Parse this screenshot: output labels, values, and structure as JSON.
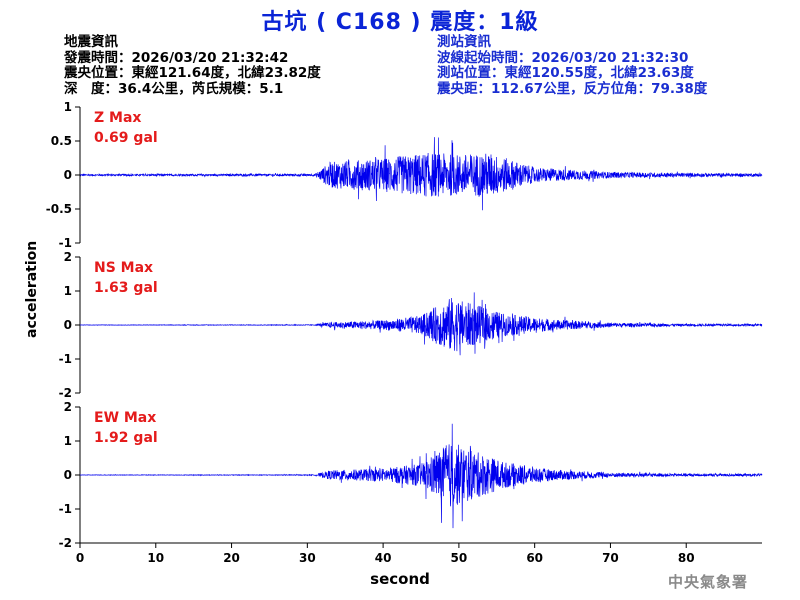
{
  "title": "古坑 ( C168 ) 震度：1級",
  "quake_info": {
    "heading": "地震資訊",
    "time": "發震時間：2026/03/20 21:32:42",
    "epicenter": "震央位置：東經121.64度，北緯23.82度",
    "depth_mag": "深　度：36.4公里，芮氏規模：5.1"
  },
  "station_info": {
    "heading": "測站資訊",
    "wave_start": "波線起始時間：2026/03/20 21:32:30",
    "location": "測站位置：東經120.55度，北緯23.63度",
    "distance": "震央距：112.67公里，反方位角：79.38度"
  },
  "ylabel": "acceleration",
  "xlabel": "second",
  "credit": "中央氣象署",
  "colors": {
    "trace": "#0000ee",
    "max_label": "#e41b1b",
    "title": "#0a24d6"
  },
  "chart_data": [
    {
      "type": "line",
      "component": "Z",
      "max_label": "Z Max",
      "max_value": "0.69 gal",
      "ylim": [
        -1,
        1
      ],
      "yticks": [
        1,
        0.5,
        0,
        -0.5,
        -1
      ],
      "envelope": {
        "x": [
          0,
          31,
          33,
          40,
          46,
          50,
          54,
          60,
          70,
          80,
          90
        ],
        "amp": [
          0.02,
          0.03,
          0.35,
          0.45,
          0.6,
          0.55,
          0.6,
          0.2,
          0.08,
          0.05,
          0.04
        ]
      }
    },
    {
      "type": "line",
      "component": "NS",
      "max_label": "NS Max",
      "max_value": "1.63 gal",
      "ylim": [
        -2,
        2
      ],
      "yticks": [
        2,
        1,
        0,
        -1,
        -2
      ],
      "envelope": {
        "x": [
          0,
          31,
          33,
          40,
          45,
          49,
          52,
          56,
          62,
          70,
          80,
          90
        ],
        "amp": [
          0.01,
          0.02,
          0.15,
          0.25,
          0.5,
          1.5,
          1.1,
          0.6,
          0.3,
          0.12,
          0.06,
          0.05
        ]
      }
    },
    {
      "type": "line",
      "component": "EW",
      "max_label": "EW Max",
      "max_value": "1.92 gal",
      "ylim": [
        -2,
        2
      ],
      "yticks": [
        2,
        1,
        0,
        -1,
        -2
      ],
      "envelope": {
        "x": [
          0,
          31,
          33,
          40,
          45,
          49,
          52,
          56,
          62,
          70,
          80,
          90
        ],
        "amp": [
          0.01,
          0.02,
          0.25,
          0.35,
          0.6,
          1.8,
          1.3,
          0.7,
          0.3,
          0.12,
          0.07,
          0.06
        ]
      }
    }
  ],
  "xaxis": {
    "xlim": [
      0,
      90
    ],
    "ticks": [
      0,
      10,
      20,
      30,
      40,
      50,
      60,
      70,
      80
    ]
  }
}
